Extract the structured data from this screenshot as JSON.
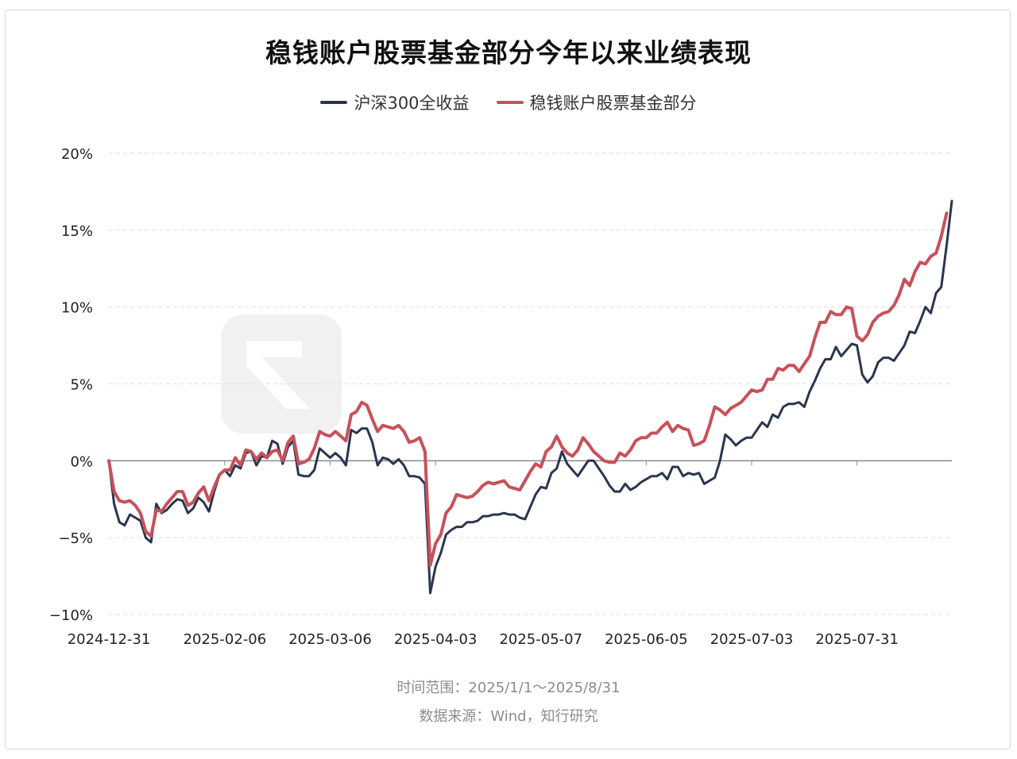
{
  "title": "稳钱账户股票基金部分今年以来业绩表现",
  "footer": {
    "time_range": "时间范围：2025/1/1～2025/8/31",
    "source": "数据来源：Wind，知行研究"
  },
  "chart_data": {
    "type": "line",
    "title": "稳钱账户股票基金部分今年以来业绩表现",
    "xlabel": "",
    "ylabel": "",
    "ylim": [
      -10,
      20
    ],
    "y_ticks": [
      20,
      15,
      10,
      5,
      0,
      -5,
      -10
    ],
    "y_tick_labels": [
      "20%",
      "15%",
      "10%",
      "5%",
      "0%",
      "−5%",
      "−10%"
    ],
    "x_tick_labels": [
      "2024-12-31",
      "2025-02-06",
      "2025-03-06",
      "2025-04-03",
      "2025-05-07",
      "2025-06-05",
      "2025-07-03",
      "2025-07-31"
    ],
    "x_tick_index": [
      0,
      22,
      42,
      62,
      82,
      102,
      122,
      142
    ],
    "grid": true,
    "legend": "top-center",
    "series": [
      {
        "name": "沪深300全收益",
        "color": "#2b3550",
        "values": [
          0,
          -2.8,
          -4.0,
          -4.2,
          -3.5,
          -3.7,
          -3.9,
          -5.0,
          -5.3,
          -2.8,
          -3.4,
          -3.2,
          -2.8,
          -2.5,
          -2.6,
          -3.4,
          -3.1,
          -2.4,
          -2.7,
          -3.3,
          -2.0,
          -0.9,
          -0.6,
          -1.0,
          -0.3,
          -0.5,
          0.5,
          0.6,
          -0.3,
          0.3,
          0.2,
          1.3,
          1.1,
          -0.2,
          0.9,
          1.3,
          -0.9,
          -1.0,
          -1.0,
          -0.6,
          0.8,
          0.5,
          0.2,
          0.5,
          0.2,
          -0.3,
          2.0,
          1.8,
          2.1,
          2.1,
          1.2,
          -0.3,
          0.2,
          0.1,
          -0.2,
          0.1,
          -0.3,
          -1.0,
          -1.0,
          -1.1,
          -1.5,
          -8.6,
          -6.9,
          -6.0,
          -4.8,
          -4.5,
          -4.3,
          -4.3,
          -4.0,
          -4.0,
          -3.9,
          -3.6,
          -3.6,
          -3.5,
          -3.5,
          -3.4,
          -3.5,
          -3.5,
          -3.7,
          -3.8,
          -3.0,
          -2.2,
          -1.7,
          -1.8,
          -0.8,
          -0.5,
          0.6,
          -0.2,
          -0.6,
          -1.0,
          -0.5,
          0.0,
          0.0,
          -0.5,
          -1.0,
          -1.6,
          -2.0,
          -2.0,
          -1.5,
          -1.9,
          -1.7,
          -1.4,
          -1.2,
          -1.0,
          -1.0,
          -0.8,
          -1.2,
          -0.4,
          -0.4,
          -1.0,
          -0.8,
          -0.9,
          -0.8,
          -1.5,
          -1.3,
          -1.1,
          0.0,
          1.7,
          1.4,
          1.0,
          1.3,
          1.5,
          1.5,
          2.0,
          2.5,
          2.2,
          3.0,
          2.8,
          3.5,
          3.7,
          3.7,
          3.8,
          3.5,
          4.5,
          5.2,
          6.0,
          6.6,
          6.6,
          7.4,
          6.8,
          7.2,
          7.6,
          7.5,
          5.6,
          5.1,
          5.5,
          6.4,
          6.7,
          6.7,
          6.5,
          7.0,
          7.5,
          8.4,
          8.3,
          9.1,
          10.0,
          9.6,
          10.9,
          11.3,
          14.0,
          16.9
        ]
      },
      {
        "name": "稳钱账户股票基金部分",
        "color": "#c8505a",
        "values": [
          0,
          -2.0,
          -2.6,
          -2.7,
          -2.6,
          -2.9,
          -3.4,
          -4.6,
          -4.9,
          -3.2,
          -3.3,
          -2.8,
          -2.4,
          -2.0,
          -2.0,
          -2.9,
          -2.7,
          -2.1,
          -1.7,
          -2.6,
          -1.7,
          -0.9,
          -0.6,
          -0.6,
          0.2,
          -0.3,
          0.7,
          0.6,
          0.1,
          0.5,
          0.2,
          0.6,
          0.7,
          0.0,
          1.2,
          1.6,
          -0.2,
          -0.1,
          0.1,
          0.8,
          1.9,
          1.7,
          1.6,
          1.9,
          1.6,
          1.3,
          3.0,
          3.2,
          3.8,
          3.6,
          2.7,
          1.9,
          2.3,
          2.2,
          2.1,
          2.3,
          1.9,
          1.2,
          1.3,
          1.5,
          0.6,
          -6.8,
          -5.4,
          -4.8,
          -3.4,
          -3.0,
          -2.2,
          -2.3,
          -2.4,
          -2.3,
          -2.0,
          -1.6,
          -1.4,
          -1.5,
          -1.4,
          -1.3,
          -1.7,
          -1.8,
          -1.9,
          -1.3,
          -0.7,
          -0.2,
          -0.4,
          0.6,
          0.9,
          1.6,
          0.9,
          0.5,
          0.3,
          0.7,
          1.5,
          1.1,
          0.6,
          0.3,
          0.0,
          -0.1,
          -0.1,
          0.5,
          0.3,
          0.7,
          1.3,
          1.5,
          1.5,
          1.8,
          1.8,
          2.2,
          2.5,
          1.9,
          2.3,
          2.1,
          2.0,
          1.0,
          1.1,
          1.3,
          2.3,
          3.5,
          3.3,
          3.0,
          3.4,
          3.6,
          3.8,
          4.2,
          4.6,
          4.5,
          4.6,
          5.3,
          5.3,
          6.0,
          5.9,
          6.2,
          6.2,
          5.8,
          6.3,
          6.8,
          8.0,
          9.0,
          9.0,
          9.7,
          9.5,
          9.5,
          10.0,
          9.9,
          8.1,
          7.8,
          8.2,
          9.0,
          9.4,
          9.6,
          9.7,
          10.1,
          10.8,
          11.8,
          11.4,
          12.3,
          12.9,
          12.8,
          13.3,
          13.5,
          14.6,
          16.1
        ]
      }
    ]
  }
}
